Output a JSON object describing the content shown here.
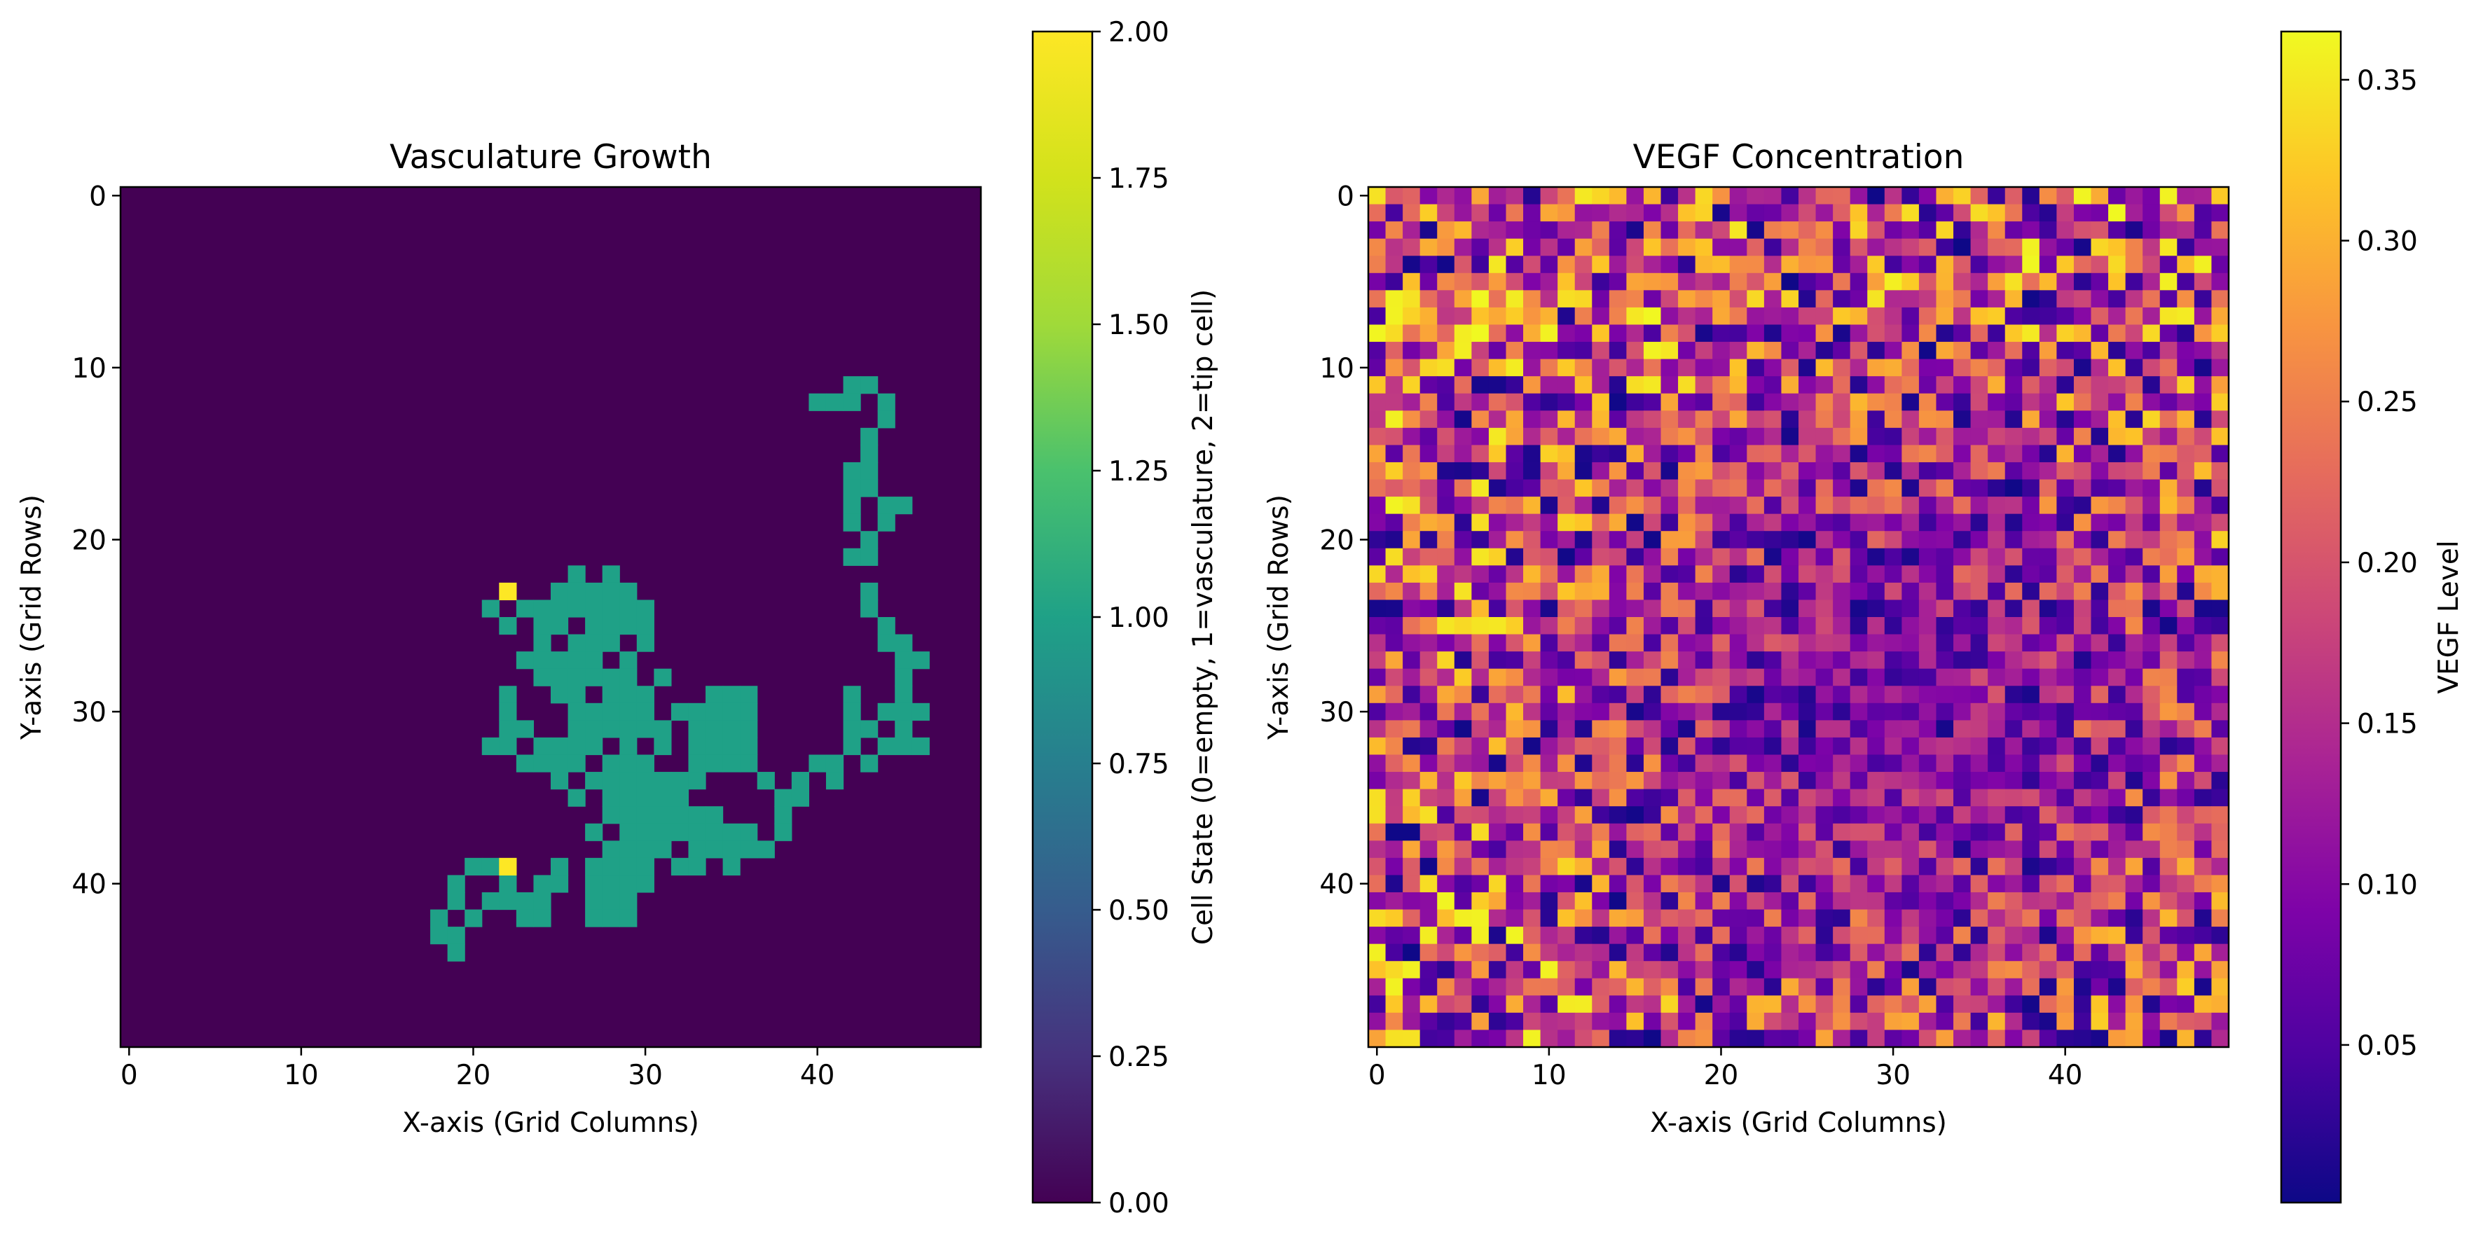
{
  "chart_data": [
    {
      "type": "heatmap",
      "title": "Vasculature Growth",
      "xlabel": "X-axis (Grid Columns)",
      "ylabel": "Y-axis (Grid Rows)",
      "grid_size": [
        50,
        50
      ],
      "xlim": [
        -0.5,
        49.5
      ],
      "ylim": [
        49.5,
        -0.5
      ],
      "xticks": [
        0,
        10,
        20,
        30,
        40
      ],
      "yticks": [
        0,
        10,
        20,
        30,
        40
      ],
      "colormap": "viridis",
      "colorbar": {
        "label": "Cell State (0=empty, 1=vasculature, 2=tip cell)",
        "range": [
          0,
          2
        ],
        "ticks": [
          "0.00",
          "0.25",
          "0.50",
          "0.75",
          "1.00",
          "1.25",
          "1.50",
          "1.75",
          "2.00"
        ]
      },
      "legend": "colorbar-right",
      "background_value": 0,
      "vasculature_cells": [
        [
          11,
          42
        ],
        [
          11,
          43
        ],
        [
          12,
          40
        ],
        [
          12,
          41
        ],
        [
          12,
          42
        ],
        [
          12,
          44
        ],
        [
          13,
          44
        ],
        [
          14,
          43
        ],
        [
          15,
          43
        ],
        [
          16,
          42
        ],
        [
          16,
          43
        ],
        [
          17,
          42
        ],
        [
          17,
          43
        ],
        [
          18,
          42
        ],
        [
          18,
          44
        ],
        [
          18,
          45
        ],
        [
          19,
          42
        ],
        [
          19,
          44
        ],
        [
          20,
          43
        ],
        [
          21,
          42
        ],
        [
          21,
          43
        ],
        [
          22,
          26
        ],
        [
          22,
          28
        ],
        [
          23,
          25
        ],
        [
          23,
          26
        ],
        [
          23,
          27
        ],
        [
          23,
          28
        ],
        [
          23,
          29
        ],
        [
          23,
          43
        ],
        [
          24,
          21
        ],
        [
          24,
          23
        ],
        [
          24,
          24
        ],
        [
          24,
          25
        ],
        [
          24,
          26
        ],
        [
          24,
          27
        ],
        [
          24,
          28
        ],
        [
          24,
          29
        ],
        [
          24,
          30
        ],
        [
          24,
          43
        ],
        [
          25,
          22
        ],
        [
          25,
          24
        ],
        [
          25,
          25
        ],
        [
          25,
          27
        ],
        [
          25,
          28
        ],
        [
          25,
          29
        ],
        [
          25,
          30
        ],
        [
          25,
          44
        ],
        [
          26,
          24
        ],
        [
          26,
          26
        ],
        [
          26,
          27
        ],
        [
          26,
          28
        ],
        [
          26,
          30
        ],
        [
          26,
          44
        ],
        [
          26,
          45
        ],
        [
          27,
          23
        ],
        [
          27,
          24
        ],
        [
          27,
          25
        ],
        [
          27,
          26
        ],
        [
          27,
          27
        ],
        [
          27,
          29
        ],
        [
          27,
          45
        ],
        [
          27,
          46
        ],
        [
          28,
          24
        ],
        [
          28,
          25
        ],
        [
          28,
          26
        ],
        [
          28,
          27
        ],
        [
          28,
          28
        ],
        [
          28,
          29
        ],
        [
          28,
          31
        ],
        [
          28,
          45
        ],
        [
          29,
          22
        ],
        [
          29,
          25
        ],
        [
          29,
          26
        ],
        [
          29,
          28
        ],
        [
          29,
          29
        ],
        [
          29,
          30
        ],
        [
          29,
          34
        ],
        [
          29,
          35
        ],
        [
          29,
          36
        ],
        [
          29,
          42
        ],
        [
          29,
          45
        ],
        [
          30,
          22
        ],
        [
          30,
          26
        ],
        [
          30,
          27
        ],
        [
          30,
          28
        ],
        [
          30,
          29
        ],
        [
          30,
          30
        ],
        [
          30,
          32
        ],
        [
          30,
          33
        ],
        [
          30,
          34
        ],
        [
          30,
          35
        ],
        [
          30,
          36
        ],
        [
          30,
          42
        ],
        [
          30,
          44
        ],
        [
          30,
          45
        ],
        [
          30,
          46
        ],
        [
          31,
          22
        ],
        [
          31,
          23
        ],
        [
          31,
          26
        ],
        [
          31,
          27
        ],
        [
          31,
          28
        ],
        [
          31,
          29
        ],
        [
          31,
          30
        ],
        [
          31,
          31
        ],
        [
          31,
          33
        ],
        [
          31,
          34
        ],
        [
          31,
          35
        ],
        [
          31,
          36
        ],
        [
          31,
          42
        ],
        [
          31,
          43
        ],
        [
          31,
          45
        ],
        [
          32,
          21
        ],
        [
          32,
          22
        ],
        [
          32,
          24
        ],
        [
          32,
          25
        ],
        [
          32,
          26
        ],
        [
          32,
          27
        ],
        [
          32,
          29
        ],
        [
          32,
          31
        ],
        [
          32,
          33
        ],
        [
          32,
          34
        ],
        [
          32,
          35
        ],
        [
          32,
          36
        ],
        [
          32,
          42
        ],
        [
          32,
          44
        ],
        [
          32,
          45
        ],
        [
          32,
          46
        ],
        [
          33,
          23
        ],
        [
          33,
          24
        ],
        [
          33,
          25
        ],
        [
          33,
          26
        ],
        [
          33,
          28
        ],
        [
          33,
          29
        ],
        [
          33,
          30
        ],
        [
          33,
          33
        ],
        [
          33,
          34
        ],
        [
          33,
          35
        ],
        [
          33,
          36
        ],
        [
          33,
          40
        ],
        [
          33,
          41
        ],
        [
          33,
          43
        ],
        [
          34,
          25
        ],
        [
          34,
          27
        ],
        [
          34,
          28
        ],
        [
          34,
          29
        ],
        [
          34,
          30
        ],
        [
          34,
          31
        ],
        [
          34,
          32
        ],
        [
          34,
          33
        ],
        [
          34,
          37
        ],
        [
          34,
          39
        ],
        [
          34,
          41
        ],
        [
          35,
          26
        ],
        [
          35,
          28
        ],
        [
          35,
          29
        ],
        [
          35,
          30
        ],
        [
          35,
          31
        ],
        [
          35,
          32
        ],
        [
          35,
          38
        ],
        [
          35,
          39
        ],
        [
          36,
          28
        ],
        [
          36,
          29
        ],
        [
          36,
          30
        ],
        [
          36,
          31
        ],
        [
          36,
          32
        ],
        [
          36,
          33
        ],
        [
          36,
          34
        ],
        [
          36,
          38
        ],
        [
          37,
          27
        ],
        [
          37,
          29
        ],
        [
          37,
          30
        ],
        [
          37,
          31
        ],
        [
          37,
          32
        ],
        [
          37,
          33
        ],
        [
          37,
          34
        ],
        [
          37,
          35
        ],
        [
          37,
          36
        ],
        [
          37,
          38
        ],
        [
          38,
          28
        ],
        [
          38,
          29
        ],
        [
          38,
          30
        ],
        [
          38,
          31
        ],
        [
          38,
          33
        ],
        [
          38,
          34
        ],
        [
          38,
          35
        ],
        [
          38,
          36
        ],
        [
          38,
          37
        ],
        [
          39,
          20
        ],
        [
          39,
          21
        ],
        [
          39,
          25
        ],
        [
          39,
          27
        ],
        [
          39,
          28
        ],
        [
          39,
          29
        ],
        [
          39,
          30
        ],
        [
          39,
          32
        ],
        [
          39,
          33
        ],
        [
          39,
          35
        ],
        [
          40,
          19
        ],
        [
          40,
          22
        ],
        [
          40,
          24
        ],
        [
          40,
          25
        ],
        [
          40,
          27
        ],
        [
          40,
          28
        ],
        [
          40,
          29
        ],
        [
          40,
          30
        ],
        [
          41,
          19
        ],
        [
          41,
          21
        ],
        [
          41,
          22
        ],
        [
          41,
          23
        ],
        [
          41,
          24
        ],
        [
          41,
          27
        ],
        [
          41,
          28
        ],
        [
          41,
          29
        ],
        [
          42,
          18
        ],
        [
          42,
          20
        ],
        [
          42,
          23
        ],
        [
          42,
          24
        ],
        [
          42,
          27
        ],
        [
          42,
          28
        ],
        [
          42,
          29
        ],
        [
          43,
          18
        ],
        [
          43,
          19
        ],
        [
          44,
          19
        ]
      ],
      "tip_cells": [
        [
          23,
          22
        ],
        [
          39,
          22
        ]
      ]
    },
    {
      "type": "heatmap",
      "title": "VEGF Concentration",
      "xlabel": "X-axis (Grid Columns)",
      "ylabel": "Y-axis (Grid Rows)",
      "grid_size": [
        50,
        50
      ],
      "xlim": [
        -0.5,
        49.5
      ],
      "ylim": [
        49.5,
        -0.5
      ],
      "xticks": [
        0,
        10,
        20,
        30,
        40
      ],
      "yticks": [
        0,
        10,
        20,
        30,
        40
      ],
      "colormap": "plasma",
      "colorbar": {
        "label": "VEGF Level",
        "range": [
          0.001,
          0.365
        ],
        "ticks": [
          "0.05",
          "0.10",
          "0.15",
          "0.20",
          "0.25",
          "0.30",
          "0.35"
        ]
      },
      "legend": "colorbar-right",
      "value_range": [
        0.001,
        0.365
      ],
      "pattern": "random noise; lower mean in center region"
    }
  ]
}
